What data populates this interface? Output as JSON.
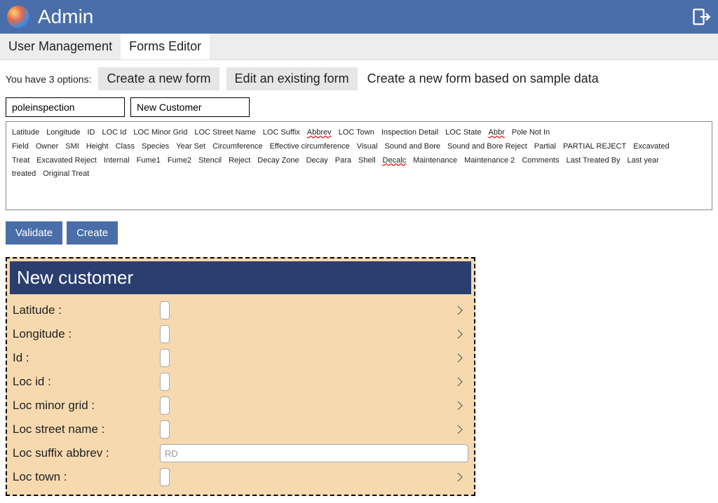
{
  "header": {
    "title": "Admin"
  },
  "tabs": {
    "user_management": "User Management",
    "forms_editor": "Forms Editor"
  },
  "options": {
    "label": "You have 3 options:",
    "create_new": "Create a new form",
    "edit_existing": "Edit an existing form",
    "based_on_sample": "Create a new form based on sample data"
  },
  "inputs": {
    "left_value": "poleinspection",
    "right_value": "New Customer"
  },
  "field_tags": [
    "Latitude",
    "Longitude",
    "ID",
    "LOC Id",
    "LOC Minor Grid",
    "LOC Street Name",
    "LOC Suffix",
    "Abbrev",
    "LOC Town",
    "Inspection Detail",
    "LOC State",
    "Abbr",
    "Pole Not In Field",
    "Owner",
    "SMI",
    "Height",
    "Class",
    "Species",
    "Year Set",
    "Circumference",
    "Effective circumference",
    "Visual",
    "Sound and Bore",
    "Sound and Bore Reject",
    "Partial",
    "PARTIAL REJECT",
    "Excavated Treat",
    "Excavated Reject",
    "Internal",
    "Fume1",
    "Fume2",
    "Stencil",
    "Reject",
    "Decay Zone",
    "Decay",
    "Para",
    "Shell",
    "Decalc",
    "Maintenance",
    "Maintenance 2",
    "Comments",
    "Last Treated By",
    "Last year treated",
    "Original Treat"
  ],
  "red_underline_tags": [
    "Abbrev",
    "Abbr",
    "Decalc"
  ],
  "buttons": {
    "validate": "Validate",
    "create": "Create"
  },
  "preview": {
    "title": "New customer",
    "rows": [
      {
        "label": "Latitude :",
        "type": "select"
      },
      {
        "label": "Longitude :",
        "type": "select"
      },
      {
        "label": "Id :",
        "type": "select"
      },
      {
        "label": "Loc id :",
        "type": "select"
      },
      {
        "label": "Loc minor grid :",
        "type": "select"
      },
      {
        "label": "Loc street name :",
        "type": "select"
      },
      {
        "label": "Loc suffix abbrev :",
        "type": "text",
        "placeholder": "RD"
      },
      {
        "label": "Loc town :",
        "type": "select"
      }
    ]
  },
  "colors": {
    "header_bg": "#4a6ea9",
    "form_header_bg": "#2c3e6e",
    "preview_bg": "#f6d9af",
    "button_bg": "#4a6ea9",
    "tab_bg": "#ededed"
  }
}
